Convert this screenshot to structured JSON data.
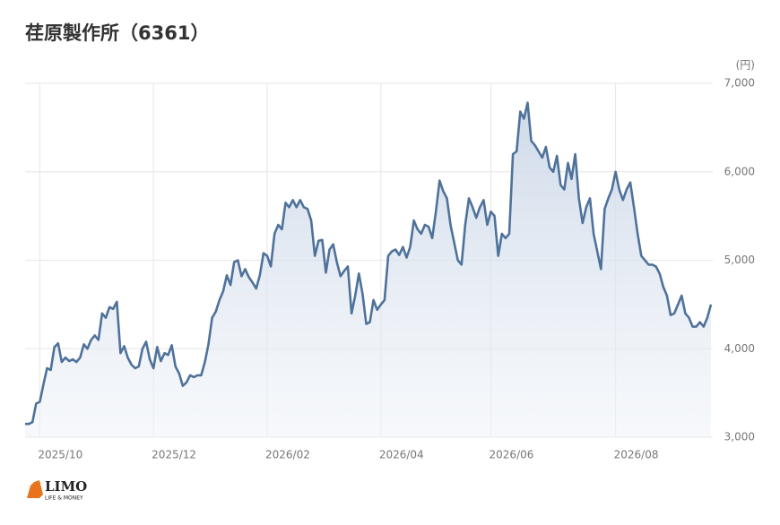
{
  "chart_data": {
    "type": "line",
    "title": "荏原製作所（6361）",
    "y_unit": "(円)",
    "color": "#4f729b",
    "area": true,
    "grid": true,
    "ylim": [
      3000,
      7000
    ],
    "yticks": [
      {
        "value": 3000,
        "label": "3,000"
      },
      {
        "value": 4000,
        "label": "4,000"
      },
      {
        "value": 5000,
        "label": "5,000"
      },
      {
        "value": 6000,
        "label": "6,000"
      },
      {
        "value": 7000,
        "label": "7,000"
      }
    ],
    "categories": [
      null,
      null,
      null,
      null,
      "2025/10",
      null,
      null,
      null,
      null,
      null,
      null,
      null,
      null,
      null,
      null,
      null,
      null,
      null,
      null,
      null,
      null,
      null,
      null,
      null,
      null,
      null,
      null,
      null,
      null,
      null,
      null,
      null,
      null,
      null,
      null,
      "2025/12",
      null,
      null,
      null,
      null,
      null,
      null,
      null,
      null,
      null,
      null,
      null,
      null,
      null,
      null,
      null,
      null,
      null,
      null,
      null,
      null,
      null,
      null,
      null,
      null,
      null,
      null,
      null,
      null,
      null,
      null,
      "2026/02",
      null,
      null,
      null,
      null,
      null,
      null,
      null,
      null,
      null,
      null,
      null,
      null,
      null,
      null,
      null,
      null,
      null,
      null,
      null,
      null,
      null,
      null,
      null,
      null,
      null,
      null,
      null,
      null,
      null,
      null,
      "2026/04",
      null,
      null,
      null,
      null,
      null,
      null,
      null,
      null,
      null,
      null,
      null,
      null,
      null,
      null,
      null,
      null,
      null,
      null,
      null,
      null,
      null,
      null,
      null,
      null,
      null,
      null,
      null,
      null,
      null,
      "2026/06",
      null,
      null,
      null,
      null,
      null,
      null,
      null,
      null,
      null,
      null,
      null,
      null,
      null,
      null,
      null,
      null,
      null,
      null,
      null,
      null,
      null,
      null,
      null,
      null,
      null,
      null,
      null,
      null,
      null,
      null,
      null,
      null,
      null,
      "2026/08",
      null,
      null,
      null,
      null,
      null,
      null,
      null,
      null,
      null,
      null,
      null,
      null,
      null,
      null,
      null,
      null,
      null,
      null,
      null,
      null,
      null,
      null,
      null,
      null,
      null,
      null
    ],
    "values": [
      3150,
      3150,
      3170,
      3380,
      3400,
      3600,
      3780,
      3760,
      4020,
      4060,
      3850,
      3900,
      3860,
      3880,
      3850,
      3900,
      4050,
      4000,
      4100,
      4150,
      4100,
      4400,
      4350,
      4470,
      4450,
      4530,
      3950,
      4030,
      3900,
      3820,
      3780,
      3800,
      4000,
      4080,
      3880,
      3780,
      4020,
      3860,
      3950,
      3930,
      4040,
      3800,
      3720,
      3580,
      3620,
      3700,
      3680,
      3700,
      3700,
      3850,
      4050,
      4350,
      4420,
      4550,
      4650,
      4830,
      4720,
      4980,
      5000,
      4820,
      4900,
      4810,
      4750,
      4680,
      4830,
      5080,
      5050,
      4930,
      5300,
      5400,
      5350,
      5650,
      5600,
      5680,
      5600,
      5680,
      5600,
      5580,
      5450,
      5050,
      5220,
      5230,
      4860,
      5120,
      5180,
      4980,
      4820,
      4880,
      4930,
      4400,
      4600,
      4850,
      4620,
      4280,
      4300,
      4550,
      4440,
      4500,
      4550,
      5050,
      5100,
      5120,
      5060,
      5150,
      5030,
      5150,
      5450,
      5350,
      5300,
      5400,
      5380,
      5250,
      5550,
      5900,
      5780,
      5700,
      5400,
      5200,
      5000,
      4950,
      5400,
      5700,
      5600,
      5480,
      5600,
      5680,
      5400,
      5550,
      5500,
      5050,
      5300,
      5250,
      5300,
      6200,
      6230,
      6680,
      6600,
      6780,
      6350,
      6300,
      6230,
      6160,
      6280,
      6050,
      6000,
      6180,
      5850,
      5800,
      6100,
      5920,
      6200,
      5700,
      5420,
      5600,
      5700,
      5300,
      5100,
      4900,
      5580,
      5700,
      5800,
      6000,
      5800,
      5680,
      5800,
      5880,
      5600,
      5300,
      5050,
      5000,
      4950,
      4950,
      4930,
      4850,
      4700,
      4600,
      4380,
      4400,
      4500,
      4600,
      4400,
      4350,
      4250,
      4250,
      4300,
      4250,
      4350,
      4500
    ]
  },
  "logo": {
    "name": "LIMO",
    "tagline": "LIFE & MONEY"
  }
}
